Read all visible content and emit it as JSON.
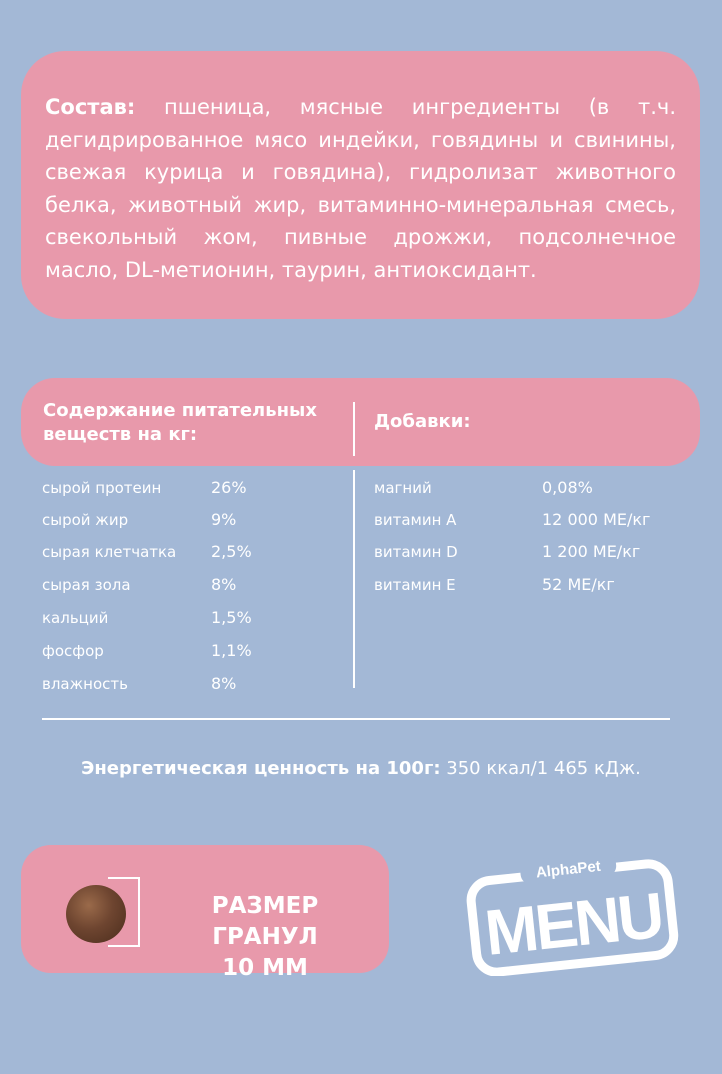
{
  "composition": {
    "label": "Состав:",
    "text": " пшеница, мясные ингредиенты (в т.ч. дегидрированное мясо индейки, говядины и свинины, свежая курица и говядина), гидролизат животного белка, животный жир, витаминно-минеральная смесь, свекольный жом, пивные дрожжи, подсолнечное масло, DL-метионин, таурин, антиоксидант."
  },
  "nutrients": {
    "header": "Содержание питательных веществ на кг:",
    "items": [
      {
        "name": "сырой протеин",
        "value": "26%"
      },
      {
        "name": "сырой жир",
        "value": "9%"
      },
      {
        "name": "сырая клетчатка",
        "value": "2,5%"
      },
      {
        "name": "сырая зола",
        "value": "8%"
      },
      {
        "name": "кальций",
        "value": "1,5%"
      },
      {
        "name": "фосфор",
        "value": "1,1%"
      },
      {
        "name": "влажность",
        "value": "8%"
      }
    ]
  },
  "additives": {
    "header": "Добавки:",
    "items": [
      {
        "name": "магний",
        "value": "0,08%"
      },
      {
        "name": "витамин А",
        "value": "12 000 МЕ/кг"
      },
      {
        "name": "витамин D",
        "value": "1 200 МЕ/кг"
      },
      {
        "name": "витамин Е",
        "value": "52 МЕ/кг"
      }
    ]
  },
  "energy": {
    "label": "Энергетическая ценность на 100г:",
    "value": " 350 ккал/1 465 кДж."
  },
  "granule": {
    "line1": "РАЗМЕР ГРАНУЛ",
    "line2": "10 ММ"
  },
  "logo": {
    "brand": "AlphaPet",
    "word": "MENU",
    "icon": "alphapet-menu-logo"
  },
  "colors": {
    "background": "#a3b8d6",
    "panel": "#e899ab",
    "text": "#ffffff"
  }
}
